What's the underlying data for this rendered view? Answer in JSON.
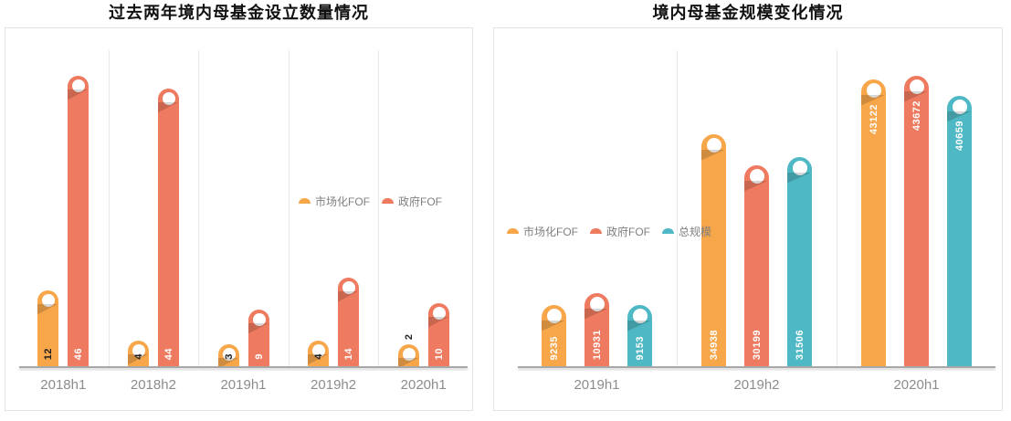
{
  "styles": {
    "axis_line_color": "#A8A8A8",
    "separator_color": "#E9E9E9",
    "panel_border_color": "#E3E3E3",
    "category_label_color": "#8C8C8C",
    "legend_text_color": "#7F7F7F",
    "title_color": "#111111"
  },
  "chart_data": [
    {
      "type": "bar",
      "title": "过去两年境内母基金设立数量情况",
      "categories": [
        "2018h1",
        "2018h2",
        "2019h1",
        "2019h2",
        "2020h1"
      ],
      "series": [
        {
          "name": "市场化FOF",
          "color": "#F7A64A",
          "label_color": "#1F1F1F",
          "values": [
            12,
            4,
            3,
            4,
            2
          ],
          "label_pos": [
            "bottom",
            "bottom",
            "bottom",
            "bottom",
            "above"
          ]
        },
        {
          "name": "政府FOF",
          "color": "#EE7A5F",
          "label_color": "#FFFFFF",
          "values": [
            46,
            44,
            9,
            14,
            10
          ],
          "label_pos": [
            "bottom",
            "bottom",
            "bottom",
            "bottom",
            "bottom"
          ]
        }
      ],
      "ylim": [
        0,
        50
      ],
      "xlabel": "",
      "ylabel": "",
      "grid": "vertical-category-separators",
      "legend_position": "middle-right",
      "bar_style": "rounded-pin-with-hole"
    },
    {
      "type": "bar",
      "title": "境内母基金规模变化情况",
      "categories": [
        "2019h1",
        "2019h2",
        "2020h1"
      ],
      "series": [
        {
          "name": "市场化FOF",
          "color": "#F7A64A",
          "label_color": "#FFFFFF",
          "values": [
            9235,
            34938,
            43122
          ],
          "label_pos": [
            "bottom",
            "bottom",
            "top"
          ]
        },
        {
          "name": "政府FOF",
          "color": "#EE7A5F",
          "label_color": "#FFFFFF",
          "values": [
            10931,
            30199,
            43672
          ],
          "label_pos": [
            "bottom",
            "bottom",
            "top"
          ]
        },
        {
          "name": "总规模",
          "color": "#4EB8C4",
          "label_color": "#FFFFFF",
          "values": [
            9153,
            31506,
            40659
          ],
          "label_pos": [
            "bottom",
            "bottom",
            "top"
          ]
        }
      ],
      "ylim": [
        0,
        47500
      ],
      "xlabel": "",
      "ylabel": "",
      "grid": "vertical-category-separators",
      "legend_position": "middle-left",
      "bar_style": "rounded-pin-with-hole"
    }
  ]
}
